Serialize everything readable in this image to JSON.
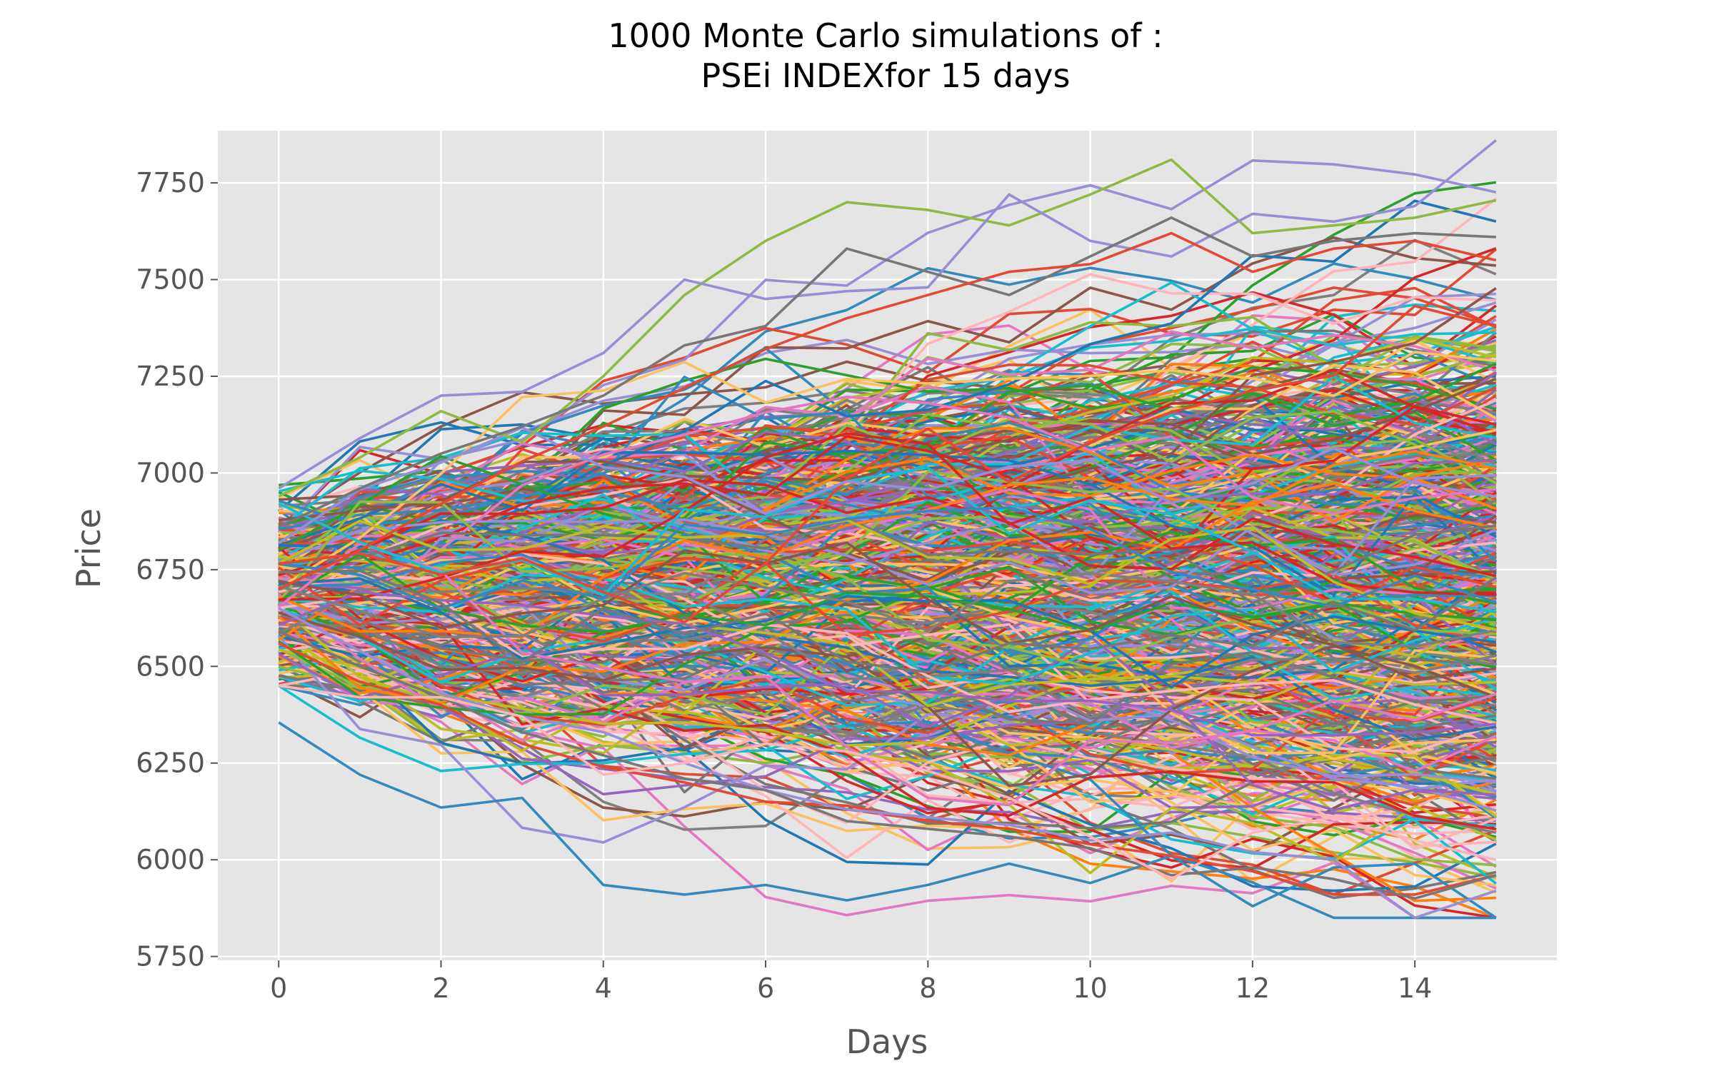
{
  "chart_data": {
    "type": "line",
    "title_line1": "1000 Monte Carlo simulations of :",
    "title_line2": "PSEi INDEXfor 15 days",
    "xlabel": "Days",
    "ylabel": "Price",
    "xlim": [
      -0.75,
      15.75
    ],
    "ylim": [
      5740,
      7885
    ],
    "xticks": [
      0,
      2,
      4,
      6,
      8,
      10,
      12,
      14
    ],
    "yticks": [
      5750,
      6000,
      6250,
      6500,
      6750,
      7000,
      7250,
      7500,
      7750
    ],
    "x": [
      0,
      1,
      2,
      3,
      4,
      5,
      6,
      7,
      8,
      9,
      10,
      11,
      12,
      13,
      14,
      15
    ],
    "num_simulations": 1000,
    "start_price_range": [
      6350,
      6970
    ],
    "grid": true,
    "style": "ggplot",
    "colors": {
      "plot_background": "#e5e5e5",
      "grid": "#ffffff",
      "palette": [
        "#1f77b4",
        "#ff7f0e",
        "#2ca02c",
        "#d62728",
        "#9467bd",
        "#8c564b",
        "#e377c2",
        "#7f7f7f",
        "#bcbd22",
        "#17becf",
        "#348abd",
        "#e24a33",
        "#988ed5",
        "#777777",
        "#fbc15e",
        "#8eba42",
        "#ffb5b8"
      ]
    },
    "series_highlights": [
      {
        "values": [
          6355,
          6220,
          6135,
          6160,
          5935,
          5910,
          5935,
          5895,
          5935,
          5990,
          5940,
          6010,
          5880,
          5980,
          5990,
          5850
        ]
      },
      {
        "values": [
          6940,
          7040,
          7160,
          7080,
          7250,
          7460,
          7600,
          7700,
          7680,
          7640,
          7720,
          7810,
          7620,
          7640,
          7660,
          7705
        ]
      },
      {
        "values": [
          6960,
          7090,
          7200,
          7210,
          7310,
          7500,
          7450,
          7470,
          7480,
          7720,
          7600,
          7560,
          7670,
          7650,
          7690,
          7865
        ]
      },
      {
        "values": [
          6860,
          6960,
          7050,
          7120,
          7200,
          7330,
          7380,
          7580,
          7520,
          7460,
          7560,
          7660,
          7560,
          7600,
          7620,
          7610
        ]
      },
      {
        "values": [
          6700,
          6800,
          6920,
          7030,
          7120,
          7220,
          7320,
          7400,
          7460,
          7520,
          7540,
          7620,
          7520,
          7580,
          7600,
          7550
        ]
      },
      {
        "values": [
          6560,
          6460,
          6400,
          6300,
          6240,
          6200,
          6150,
          6140,
          6100,
          6080,
          6040,
          6010,
          5970,
          5910,
          5910,
          5960
        ]
      },
      {
        "values": [
          6650,
          6540,
          6430,
          6370,
          6330,
          6250,
          6180,
          6130,
          6110,
          6090,
          6050,
          6070,
          6020,
          6000,
          5840,
          5920
        ]
      },
      {
        "values": [
          6590,
          6500,
          6420,
          6330,
          6270,
          6210,
          6180,
          6100,
          6080,
          6060,
          6030,
          5960,
          5980,
          5950,
          5900,
          5960
        ]
      },
      {
        "values": [
          6450,
          6420,
          6420,
          6370,
          6220,
          6250,
          6300,
          6280,
          6230,
          6160,
          6060,
          5950,
          6070,
          6110,
          6050,
          6000
        ]
      }
    ]
  }
}
